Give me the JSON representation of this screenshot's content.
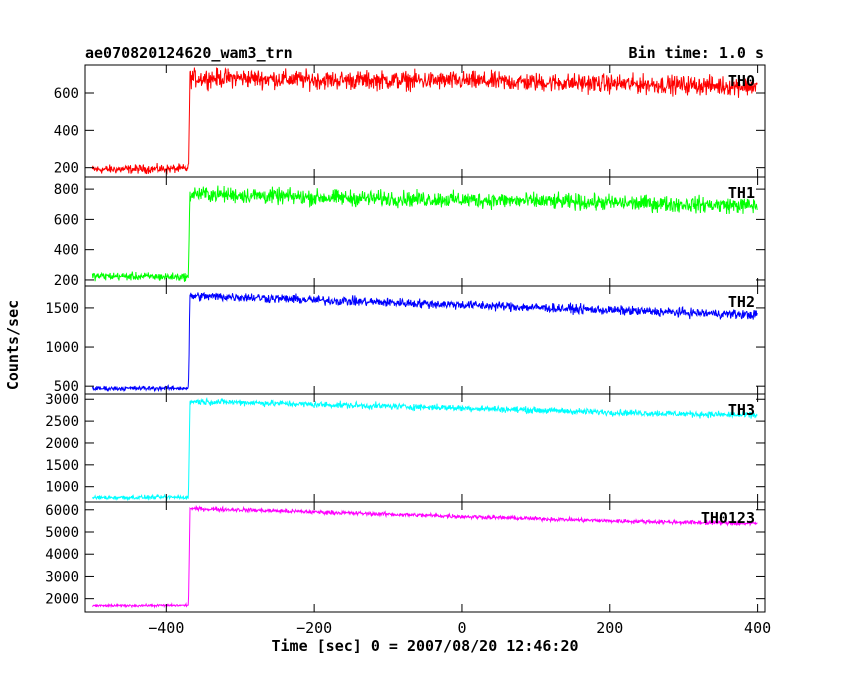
{
  "chart_data": {
    "type": "line",
    "title_left": "ae070820124620_wam3_trn",
    "title_right": "Bin time: 1.0 s",
    "xlabel": "Time [sec] 0 = 2007/08/20 12:46:20",
    "ylabel": "Counts/sec",
    "xlim": [
      -510,
      410
    ],
    "xticks": [
      -400,
      -200,
      0,
      200,
      400
    ],
    "grid": false,
    "panels": [
      {
        "name": "TH0",
        "color": "#ff0000",
        "ylim": [
          150,
          750
        ],
        "yticks": [
          200,
          400,
          600
        ],
        "points": [
          {
            "x": -500,
            "y": 190
          },
          {
            "x": -370,
            "y": 195
          },
          {
            "x": -368,
            "y": 680
          },
          {
            "x": -300,
            "y": 680
          },
          {
            "x": -200,
            "y": 670
          },
          {
            "x": 0,
            "y": 665
          },
          {
            "x": 200,
            "y": 650
          },
          {
            "x": 400,
            "y": 635
          }
        ],
        "noise": [
          18,
          38
        ]
      },
      {
        "name": "TH1",
        "color": "#00ff00",
        "ylim": [
          160,
          880
        ],
        "yticks": [
          200,
          400,
          600,
          800
        ],
        "points": [
          {
            "x": -500,
            "y": 225
          },
          {
            "x": -370,
            "y": 220
          },
          {
            "x": -368,
            "y": 770
          },
          {
            "x": -300,
            "y": 760
          },
          {
            "x": -200,
            "y": 745
          },
          {
            "x": 0,
            "y": 730
          },
          {
            "x": 200,
            "y": 710
          },
          {
            "x": 400,
            "y": 690
          }
        ],
        "noise": [
          20,
          40
        ]
      },
      {
        "name": "TH2",
        "color": "#0000ff",
        "ylim": [
          400,
          1780
        ],
        "yticks": [
          500,
          1000,
          1500
        ],
        "points": [
          {
            "x": -500,
            "y": 470
          },
          {
            "x": -370,
            "y": 475
          },
          {
            "x": -368,
            "y": 1650
          },
          {
            "x": -300,
            "y": 1640
          },
          {
            "x": -200,
            "y": 1600
          },
          {
            "x": 0,
            "y": 1540
          },
          {
            "x": 200,
            "y": 1470
          },
          {
            "x": 400,
            "y": 1410
          }
        ],
        "noise": [
          22,
          45
        ]
      },
      {
        "name": "TH3",
        "color": "#00ffff",
        "ylim": [
          650,
          3120
        ],
        "yticks": [
          1000,
          1500,
          2000,
          2500,
          3000
        ],
        "points": [
          {
            "x": -500,
            "y": 750
          },
          {
            "x": -370,
            "y": 760
          },
          {
            "x": -368,
            "y": 2950
          },
          {
            "x": -300,
            "y": 2930
          },
          {
            "x": -200,
            "y": 2880
          },
          {
            "x": 0,
            "y": 2800
          },
          {
            "x": 200,
            "y": 2700
          },
          {
            "x": 400,
            "y": 2630
          }
        ],
        "noise": [
          35,
          55
        ]
      },
      {
        "name": "TH0123",
        "color": "#ff00ff",
        "ylim": [
          1400,
          6350
        ],
        "yticks": [
          2000,
          3000,
          4000,
          5000,
          6000
        ],
        "points": [
          {
            "x": -500,
            "y": 1680
          },
          {
            "x": -370,
            "y": 1700
          },
          {
            "x": -368,
            "y": 6050
          },
          {
            "x": -300,
            "y": 6000
          },
          {
            "x": -200,
            "y": 5900
          },
          {
            "x": 0,
            "y": 5700
          },
          {
            "x": 200,
            "y": 5500
          },
          {
            "x": 400,
            "y": 5380
          }
        ],
        "noise": [
          40,
          70
        ]
      }
    ]
  }
}
